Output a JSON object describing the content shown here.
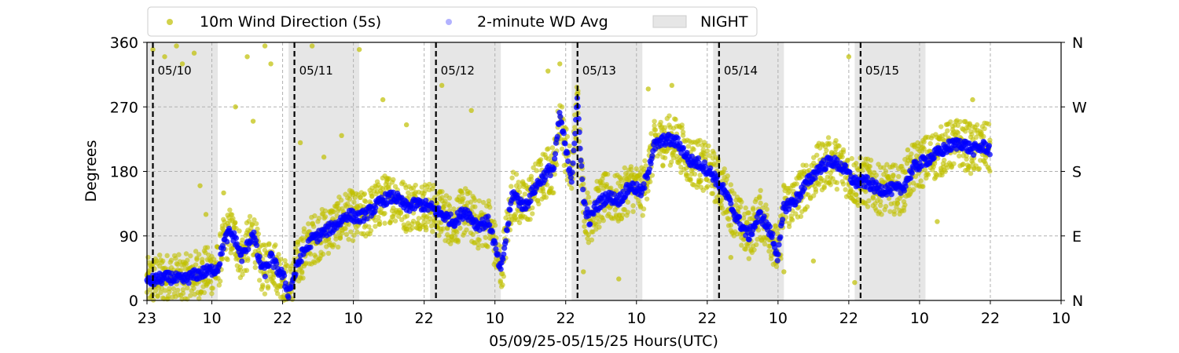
{
  "chart_data": {
    "type": "scatter",
    "xlabel": "05/09/25-05/15/25  Hours(UTC)",
    "ylabel": "Degrees",
    "x_unit": "hours (UTC) from 05/09 23:00",
    "xlim": [
      0,
      155
    ],
    "ylim": [
      0,
      360
    ],
    "x_ticks": [
      {
        "x": 0,
        "label": "23"
      },
      {
        "x": 11,
        "label": "10"
      },
      {
        "x": 23,
        "label": "22"
      },
      {
        "x": 35,
        "label": "10"
      },
      {
        "x": 47,
        "label": "22"
      },
      {
        "x": 59,
        "label": "10"
      },
      {
        "x": 71,
        "label": "22"
      },
      {
        "x": 83,
        "label": "10"
      },
      {
        "x": 95,
        "label": "22"
      },
      {
        "x": 107,
        "label": "10"
      },
      {
        "x": 119,
        "label": "22"
      },
      {
        "x": 131,
        "label": "10"
      },
      {
        "x": 143,
        "label": "22"
      },
      {
        "x": 155,
        "label": "10"
      }
    ],
    "y_ticks": [
      0,
      90,
      180,
      270,
      360
    ],
    "y2_ticks": [
      {
        "y": 0,
        "label": "N"
      },
      {
        "y": 90,
        "label": "E"
      },
      {
        "y": 180,
        "label": "S"
      },
      {
        "y": 270,
        "label": "W"
      },
      {
        "y": 360,
        "label": "N"
      }
    ],
    "grid": true,
    "legend": {
      "placement": "top",
      "entries": [
        {
          "label": "10m Wind Direction (5s)",
          "color": "#bfbf00",
          "marker": "dot"
        },
        {
          "label": "2-minute WD Avg",
          "color": "#0000ff",
          "marker": "dot"
        },
        {
          "label": "NIGHT",
          "color": "#e6e6e6",
          "marker": "patch"
        }
      ]
    },
    "night_periods": [
      [
        0,
        12
      ],
      [
        24,
        36
      ],
      [
        48,
        60
      ],
      [
        72,
        84
      ],
      [
        96,
        108
      ],
      [
        120,
        132
      ]
    ],
    "day_markers": [
      {
        "x": 1,
        "label": "05/10"
      },
      {
        "x": 25,
        "label": "05/11"
      },
      {
        "x": 49,
        "label": "05/12"
      },
      {
        "x": 73,
        "label": "05/13"
      },
      {
        "x": 97,
        "label": "05/14"
      },
      {
        "x": 121,
        "label": "05/15"
      }
    ],
    "series": [
      {
        "name": "2-minute WD Avg",
        "color": "#0000ff",
        "x": [
          0,
          2,
          4,
          6,
          8,
          10,
          12,
          13,
          14,
          15,
          16,
          17,
          18,
          19,
          20,
          21,
          22,
          23,
          24,
          26,
          28,
          30,
          32,
          34,
          36,
          38,
          40,
          42,
          44,
          46,
          48,
          50,
          52,
          54,
          56,
          58,
          59,
          60,
          62,
          64,
          66,
          68,
          69,
          70,
          71,
          72,
          73,
          74,
          75,
          76,
          78,
          80,
          82,
          84,
          86,
          88,
          90,
          92,
          94,
          96,
          98,
          100,
          102,
          104,
          106,
          107,
          108,
          110,
          112,
          114,
          116,
          118,
          119,
          120,
          122,
          124,
          126,
          128,
          130,
          132,
          134,
          136,
          138,
          140,
          142,
          143
        ],
        "y": [
          25,
          30,
          32,
          28,
          35,
          40,
          45,
          80,
          95,
          85,
          60,
          75,
          95,
          55,
          40,
          60,
          45,
          35,
          10,
          60,
          85,
          95,
          105,
          120,
          115,
          125,
          140,
          145,
          130,
          135,
          130,
          120,
          110,
          125,
          105,
          110,
          75,
          40,
          150,
          130,
          160,
          180,
          185,
          260,
          210,
          170,
          280,
          140,
          110,
          130,
          145,
          140,
          160,
          150,
          215,
          225,
          220,
          195,
          190,
          175,
          150,
          115,
          90,
          120,
          90,
          60,
          130,
          140,
          165,
          185,
          195,
          185,
          175,
          165,
          165,
          155,
          155,
          155,
          185,
          195,
          205,
          215,
          220,
          210,
          215,
          210
        ]
      },
      {
        "name": "10m Wind Direction (5s)",
        "color": "#bfbf00",
        "spread_deg": 35,
        "outliers": [
          {
            "x": 1,
            "y": 350
          },
          {
            "x": 3,
            "y": 340
          },
          {
            "x": 5,
            "y": 355
          },
          {
            "x": 6,
            "y": 330
          },
          {
            "x": 8,
            "y": 345
          },
          {
            "x": 9,
            "y": 160
          },
          {
            "x": 10,
            "y": 120
          },
          {
            "x": 13,
            "y": 150
          },
          {
            "x": 15,
            "y": 270
          },
          {
            "x": 17,
            "y": 340
          },
          {
            "x": 18,
            "y": 250
          },
          {
            "x": 20,
            "y": 355
          },
          {
            "x": 21,
            "y": 330
          },
          {
            "x": 26,
            "y": 220
          },
          {
            "x": 28,
            "y": 355
          },
          {
            "x": 30,
            "y": 200
          },
          {
            "x": 33,
            "y": 230
          },
          {
            "x": 36,
            "y": 350
          },
          {
            "x": 40,
            "y": 280
          },
          {
            "x": 44,
            "y": 245
          },
          {
            "x": 50,
            "y": 300
          },
          {
            "x": 55,
            "y": 265
          },
          {
            "x": 68,
            "y": 320
          },
          {
            "x": 70,
            "y": 330
          },
          {
            "x": 74,
            "y": 40
          },
          {
            "x": 80,
            "y": 30
          },
          {
            "x": 85,
            "y": 295
          },
          {
            "x": 89,
            "y": 300
          },
          {
            "x": 99,
            "y": 60
          },
          {
            "x": 108,
            "y": 40
          },
          {
            "x": 113,
            "y": 55
          },
          {
            "x": 119,
            "y": 340
          },
          {
            "x": 120,
            "y": 25
          },
          {
            "x": 129,
            "y": 210
          },
          {
            "x": 134,
            "y": 110
          },
          {
            "x": 140,
            "y": 280
          }
        ]
      }
    ]
  }
}
